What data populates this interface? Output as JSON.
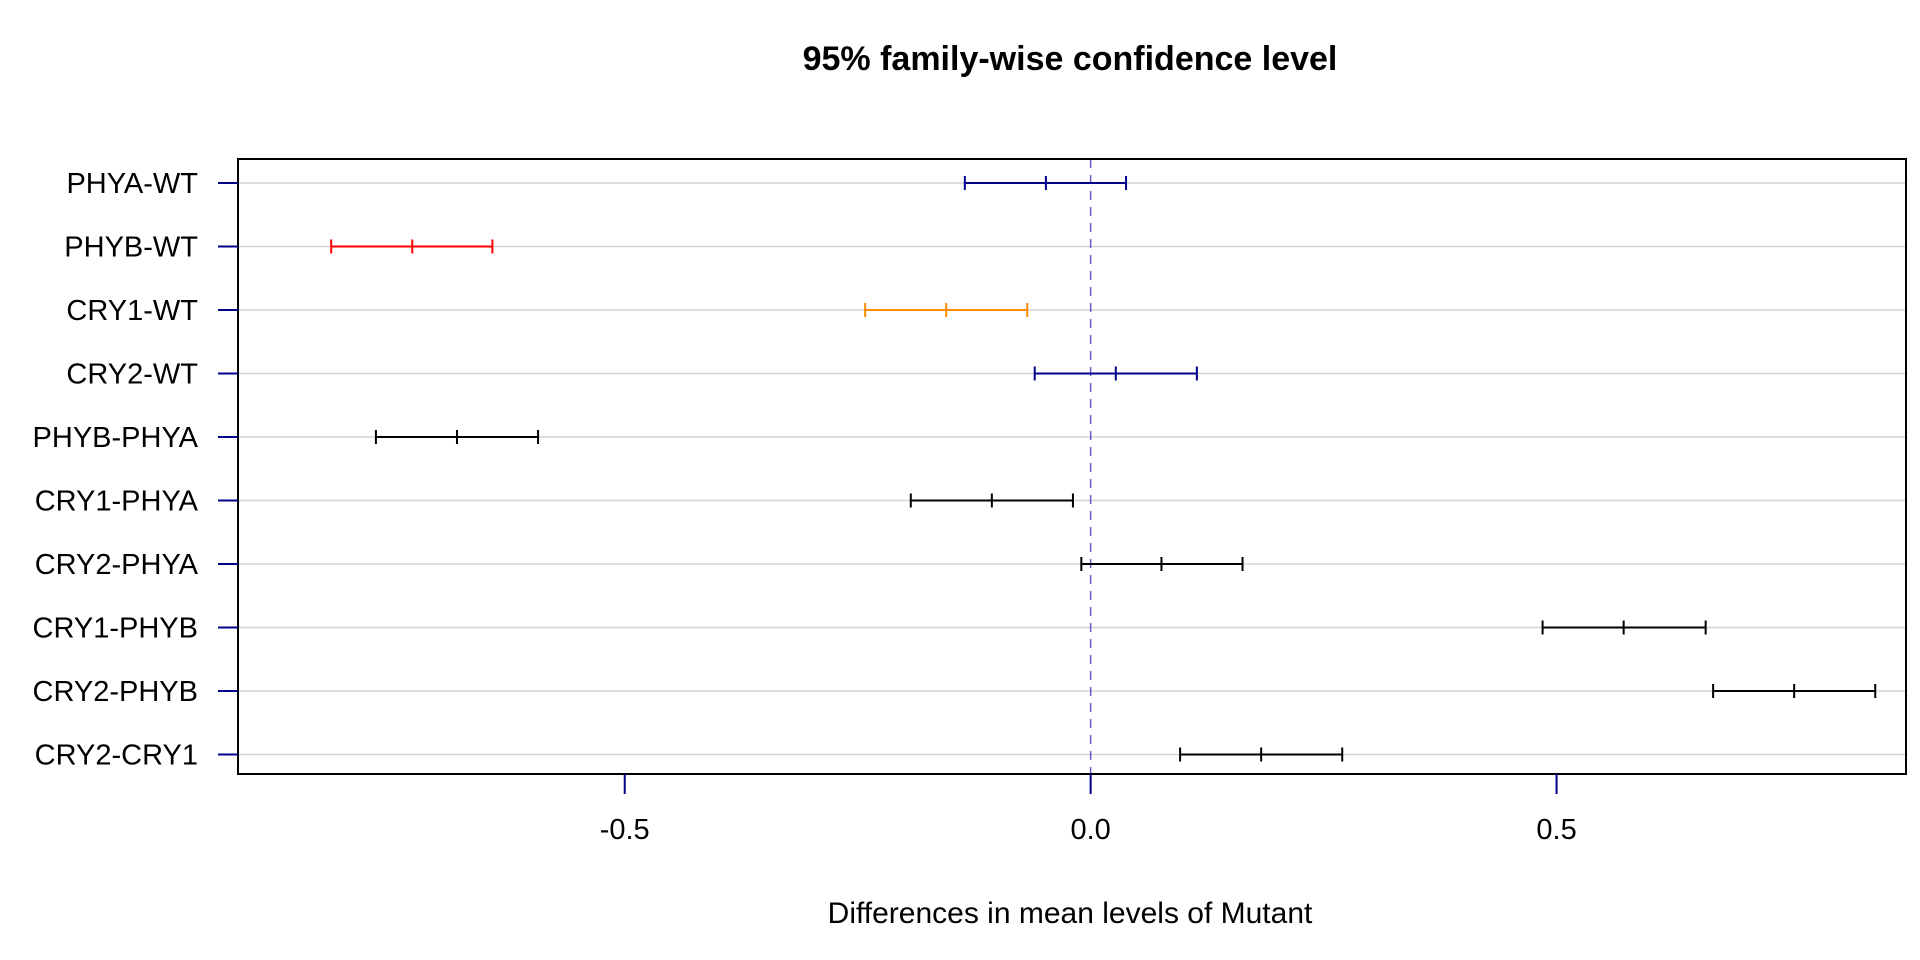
{
  "chart_data": {
    "type": "interval",
    "title": "95% family-wise confidence level",
    "xlabel": "Differences in mean levels of Mutant",
    "ylabel": "",
    "xlim": [
      -0.915,
      0.875
    ],
    "x_ticks": [
      -0.5,
      0.0,
      0.5
    ],
    "x_tick_labels": [
      "-0.5",
      "0.0",
      "0.5"
    ],
    "reference_line": 0.0,
    "grid": "horizontal",
    "colors": {
      "axis_ticks": "#00008b",
      "reference_line": "#6a5acd",
      "grid": "#d3d3d3",
      "default": "#000000"
    },
    "comparisons": [
      {
        "label": "PHYA-WT",
        "lwr": -0.135,
        "diff": -0.048,
        "upr": 0.038,
        "color": "#00008b"
      },
      {
        "label": "PHYB-WT",
        "lwr": -0.815,
        "diff": -0.728,
        "upr": -0.642,
        "color": "#ff0000"
      },
      {
        "label": "CRY1-WT",
        "lwr": -0.242,
        "diff": -0.155,
        "upr": -0.068,
        "color": "#ff8c00"
      },
      {
        "label": "CRY2-WT",
        "lwr": -0.06,
        "diff": 0.027,
        "upr": 0.114,
        "color": "#00008b"
      },
      {
        "label": "PHYB-PHYA",
        "lwr": -0.767,
        "diff": -0.68,
        "upr": -0.593,
        "color": "#000000"
      },
      {
        "label": "CRY1-PHYA",
        "lwr": -0.193,
        "diff": -0.106,
        "upr": -0.019,
        "color": "#000000"
      },
      {
        "label": "CRY2-PHYA",
        "lwr": -0.01,
        "diff": 0.076,
        "upr": 0.163,
        "color": "#000000"
      },
      {
        "label": "CRY1-PHYB",
        "lwr": 0.485,
        "diff": 0.572,
        "upr": 0.66,
        "color": "#000000"
      },
      {
        "label": "CRY2-PHYB",
        "lwr": 0.668,
        "diff": 0.755,
        "upr": 0.842,
        "color": "#000000"
      },
      {
        "label": "CRY2-CRY1",
        "lwr": 0.096,
        "diff": 0.183,
        "upr": 0.27,
        "color": "#000000"
      }
    ]
  }
}
